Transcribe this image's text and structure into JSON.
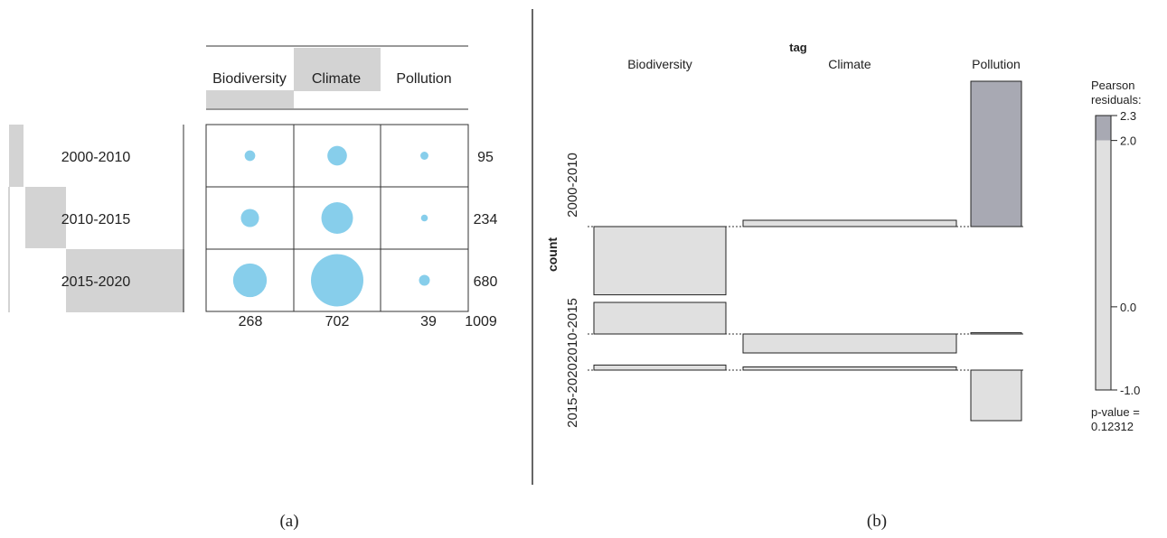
{
  "colors": {
    "circle": "#87ceeb",
    "shade": "#d3d3d3",
    "bar_fill": "#e0e0e0",
    "bar_highlight": "#a8a9b3",
    "stroke": "#222222",
    "divider": "#333333"
  },
  "panel_a": {
    "caption": "(a)",
    "columns": [
      "Biodiversity",
      "Climate",
      "Pollution"
    ],
    "rows": [
      "2000-2010",
      "2010-2015",
      "2015-2020"
    ]
  },
  "panel_b": {
    "caption": "(b)",
    "title": "tag",
    "ylabel": "count",
    "columns": [
      "Biodiversity",
      "Climate",
      "Pollution"
    ],
    "rows": [
      "2000-2010",
      "2010-2015",
      "2015-2020"
    ],
    "legend": {
      "title_line1": "Pearson",
      "title_line2": "residuals:",
      "ticks": [
        "2.3",
        "2.0",
        "0.0",
        "-1.0"
      ],
      "pvalue_line1": "p-value =",
      "pvalue_line2": "0.12312"
    }
  },
  "chart_data": [
    {
      "type": "table",
      "chart_kind": "balloon plot",
      "columns": [
        "Biodiversity",
        "Climate",
        "Pollution"
      ],
      "rows": [
        "2000-2010",
        "2010-2015",
        "2015-2020"
      ],
      "values": [
        [
          19,
          65,
          11
        ],
        [
          56,
          170,
          8
        ],
        [
          193,
          467,
          20
        ]
      ],
      "row_totals": [
        "95",
        "234",
        "680"
      ],
      "col_totals": [
        "268",
        "702",
        "39"
      ],
      "grand_total": "1009"
    },
    {
      "type": "bar",
      "chart_kind": "association plot",
      "title": "tag",
      "ylabel": "count",
      "columns": [
        "Biodiversity",
        "Climate",
        "Pollution"
      ],
      "rows": [
        "2000-2010",
        "2010-2015",
        "2015-2020"
      ],
      "pearson_residuals": [
        [
          -1.08,
          0.1,
          2.3
        ],
        [
          0.5,
          -0.3,
          0.02
        ],
        [
          0.08,
          0.05,
          -0.8
        ]
      ],
      "legend_range": [
        -1.0,
        2.3
      ],
      "legend_ticks": [
        2.3,
        2.0,
        0.0,
        -1.0
      ],
      "p_value": "0.12312"
    }
  ]
}
